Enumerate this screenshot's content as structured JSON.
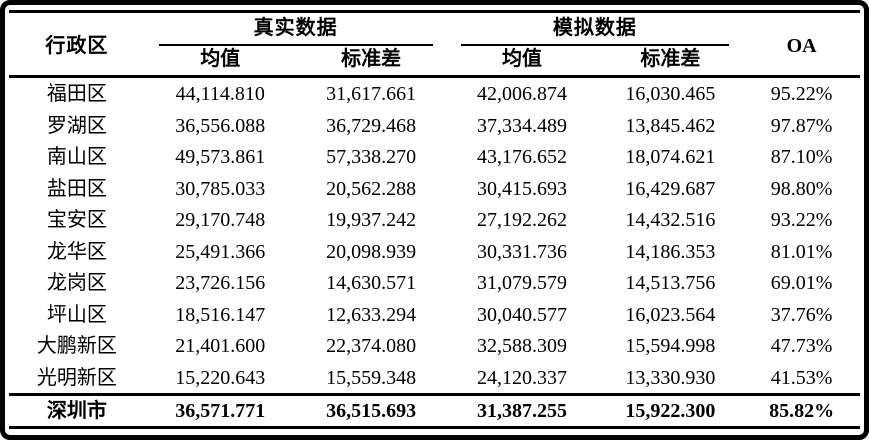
{
  "page": {
    "background_color": "#ffffff",
    "frame_color": "#000000",
    "text_color": "#000000"
  },
  "table": {
    "headers": {
      "district": "行政区",
      "real_group": "真实数据",
      "sim_group": "模拟数据",
      "mean": "均值",
      "std": "标准差",
      "oa": "OA"
    },
    "rows": [
      {
        "district": "福田区",
        "real_mean": "44,114.810",
        "real_std": "31,617.661",
        "sim_mean": "42,006.874",
        "sim_std": "16,030.465",
        "oa": "95.22%"
      },
      {
        "district": "罗湖区",
        "real_mean": "36,556.088",
        "real_std": "36,729.468",
        "sim_mean": "37,334.489",
        "sim_std": "13,845.462",
        "oa": "97.87%"
      },
      {
        "district": "南山区",
        "real_mean": "49,573.861",
        "real_std": "57,338.270",
        "sim_mean": "43,176.652",
        "sim_std": "18,074.621",
        "oa": "87.10%"
      },
      {
        "district": "盐田区",
        "real_mean": "30,785.033",
        "real_std": "20,562.288",
        "sim_mean": "30,415.693",
        "sim_std": "16,429.687",
        "oa": "98.80%"
      },
      {
        "district": "宝安区",
        "real_mean": "29,170.748",
        "real_std": "19,937.242",
        "sim_mean": "27,192.262",
        "sim_std": "14,432.516",
        "oa": "93.22%"
      },
      {
        "district": "龙华区",
        "real_mean": "25,491.366",
        "real_std": "20,098.939",
        "sim_mean": "30,331.736",
        "sim_std": "14,186.353",
        "oa": "81.01%"
      },
      {
        "district": "龙岗区",
        "real_mean": "23,726.156",
        "real_std": "14,630.571",
        "sim_mean": "31,079.579",
        "sim_std": "14,513.756",
        "oa": "69.01%"
      },
      {
        "district": "坪山区",
        "real_mean": "18,516.147",
        "real_std": "12,633.294",
        "sim_mean": "30,040.577",
        "sim_std": "16,023.564",
        "oa": "37.76%"
      },
      {
        "district": "大鹏新区",
        "real_mean": "21,401.600",
        "real_std": "22,374.080",
        "sim_mean": "32,588.309",
        "sim_std": "15,594.998",
        "oa": "47.73%"
      },
      {
        "district": "光明新区",
        "real_mean": "15,220.643",
        "real_std": "15,559.348",
        "sim_mean": "24,120.337",
        "sim_std": "13,330.930",
        "oa": "41.53%"
      }
    ],
    "total": {
      "district": "深圳市",
      "real_mean": "36,571.771",
      "real_std": "36,515.693",
      "sim_mean": "31,387.255",
      "sim_std": "15,922.300",
      "oa": "85.82%"
    }
  }
}
